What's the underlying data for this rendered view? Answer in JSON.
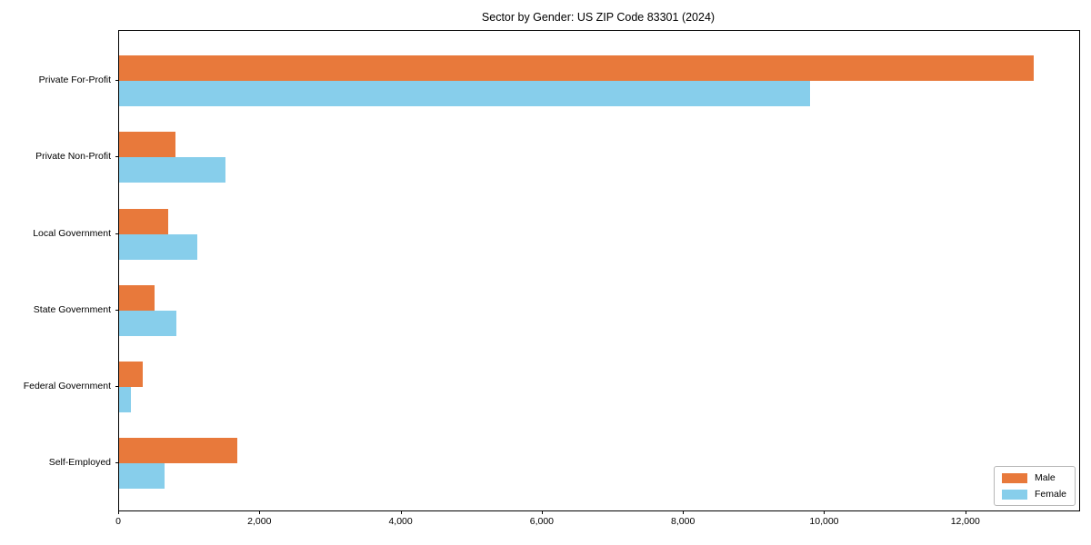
{
  "title": "Sector by Gender: US ZIP Code 83301 (2024)",
  "colors": {
    "male": "#E8793B",
    "female": "#87CEEB",
    "spine": "#000000",
    "legend_border": "#b7b7b7",
    "background": "#ffffff"
  },
  "legend": {
    "position": "lower right",
    "male_label": "Male",
    "female_label": "Female"
  },
  "chart_data": {
    "type": "bar",
    "orientation": "horizontal",
    "title": "Sector by Gender: US ZIP Code 83301 (2024)",
    "xlabel": "",
    "ylabel": "",
    "categories": [
      "Private For-Profit",
      "Private Non-Profit",
      "Local Government",
      "State Government",
      "Federal Government",
      "Self-Employed"
    ],
    "series": [
      {
        "name": "Male",
        "color": "#E8793B",
        "values": [
          12960,
          800,
          700,
          500,
          330,
          1680
        ]
      },
      {
        "name": "Female",
        "color": "#87CEEB",
        "values": [
          9790,
          1510,
          1110,
          810,
          170,
          640
        ]
      }
    ],
    "xlim": [
      0,
      13600
    ],
    "xticks": [
      0,
      2000,
      4000,
      6000,
      8000,
      10000,
      12000
    ],
    "xtick_labels": [
      "0",
      "2,000",
      "4,000",
      "6,000",
      "8,000",
      "10,000",
      "12,000"
    ],
    "grid": false,
    "legend_position": "lower right"
  }
}
